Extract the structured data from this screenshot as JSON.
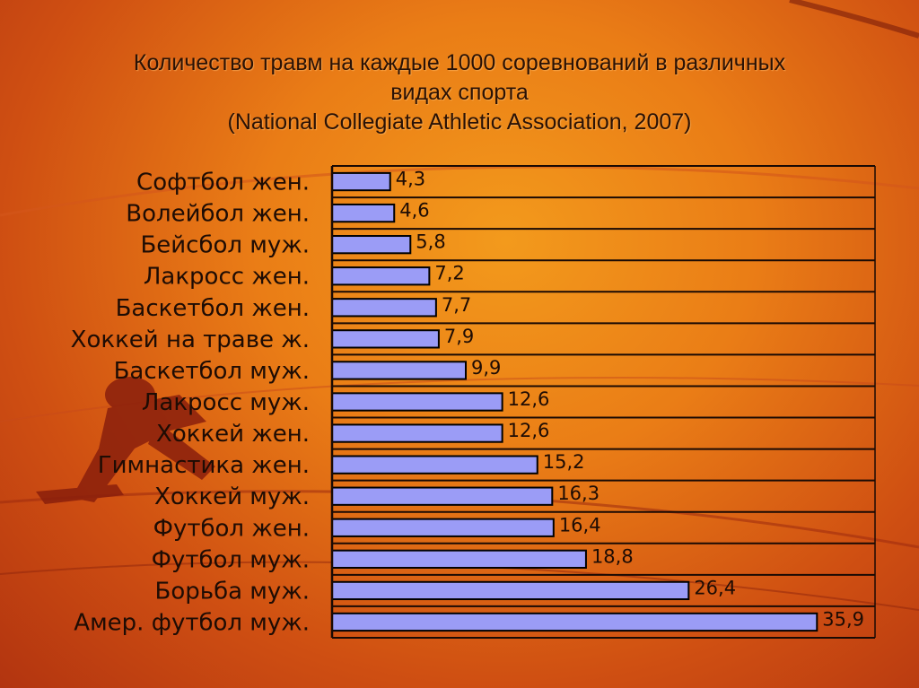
{
  "title": {
    "line1": "Количество травм на каждые 1000 соревнований в различных",
    "line2": "видах спорта",
    "line3": "(National Collegiate Athletic Association, 2007)"
  },
  "colors": {
    "bar_fill": "#9b9cf6",
    "bar_stroke": "#000000",
    "grid": "#1a0a04",
    "text": "#1e0c04"
  },
  "chart_data": {
    "type": "bar",
    "orientation": "horizontal",
    "title": "Количество травм на каждые 1000 соревнований в различных видах спорта (National Collegiate Athletic Association, 2007)",
    "categories": [
      "Софтбол жен.",
      "Волейбол жен.",
      "Бейсбол муж.",
      "Лакросс жен.",
      "Баскетбол жен.",
      "Хоккей на траве ж.",
      "Баскетбол муж.",
      "Лакросс муж.",
      "Хоккей жен.",
      "Гимнастика жен.",
      "Хоккей муж.",
      "Футбол жен.",
      "Футбол муж.",
      "Борьба муж.",
      "Амер. футбол муж."
    ],
    "values": [
      4.3,
      4.6,
      5.8,
      7.2,
      7.7,
      7.9,
      9.9,
      12.6,
      12.6,
      15.2,
      16.3,
      16.4,
      18.8,
      26.4,
      35.9
    ],
    "value_labels": [
      "4,3",
      "4,6",
      "5,8",
      "7,2",
      "7,7",
      "7,9",
      "9,9",
      "12,6",
      "12,6",
      "15,2",
      "16,3",
      "16,4",
      "18,8",
      "26,4",
      "35,9"
    ],
    "xlim": [
      0,
      40
    ],
    "grid": true,
    "legend": "none"
  }
}
